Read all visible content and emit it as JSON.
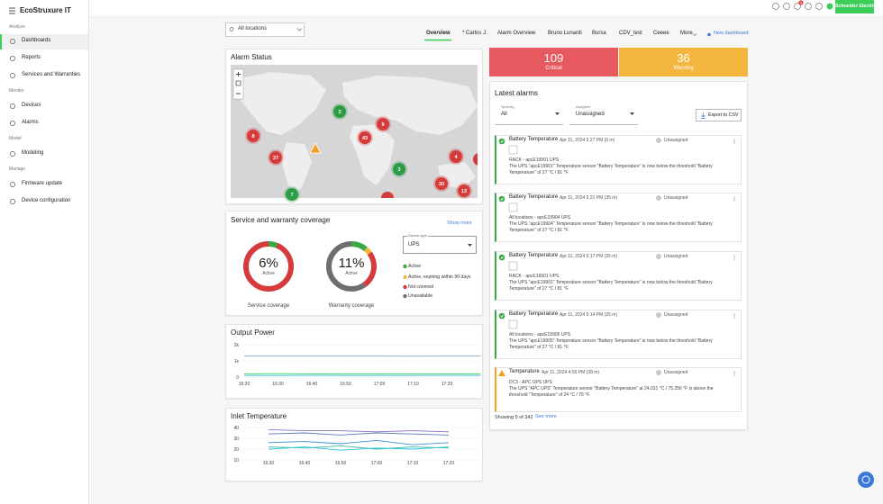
{
  "header": {
    "brand": "EcoStruxure IT",
    "notifications": 3,
    "vendor": "Schneider Electric"
  },
  "sidebar": {
    "sections": [
      {
        "title": "Analyze",
        "items": [
          "Dashboards",
          "Reports",
          "Services and Warranties"
        ]
      },
      {
        "title": "Monitor",
        "items": [
          "Devices",
          "Alarms"
        ]
      },
      {
        "title": "Model",
        "items": [
          "Modeling"
        ]
      },
      {
        "title": "Manage",
        "items": [
          "Firmware update",
          "Device configuration"
        ]
      }
    ]
  },
  "toolbar": {
    "location": "All locations",
    "tabs": [
      "Overview",
      "* Carlos J.",
      "Alarm Overview",
      "Bruno Lunardi",
      "Bursa",
      "CDV_test",
      "Ceeee",
      "More"
    ],
    "new_dashboard": "New dashboard"
  },
  "alarm_status": {
    "title": "Alarm Status",
    "clusters": [
      {
        "count": 2,
        "color": "#2e9c45"
      },
      {
        "count": 9,
        "color": "#d63b3b"
      },
      {
        "count": 8,
        "color": "#d63b3b"
      },
      {
        "count": 43,
        "color": "#d63b3b"
      },
      {
        "count": 27,
        "color": "#d63b3b"
      },
      {
        "count": 4,
        "color": "#d63b3b"
      },
      {
        "count": 3,
        "color": "#2e9c45"
      },
      {
        "count": 20,
        "color": "#d63b3b"
      },
      {
        "count": 13,
        "color": "#d63b3b"
      },
      {
        "count": 7,
        "color": "#2e9c45"
      }
    ]
  },
  "counters": [
    {
      "value": 109,
      "label": "Critical",
      "color": "#e65a5f"
    },
    {
      "value": 36,
      "label": "Warning",
      "color": "#f4b63f"
    }
  ],
  "coverage": {
    "title": "Service and warranty coverage",
    "show_more": "Show more",
    "donuts": [
      {
        "value": 6,
        "value_label": "6%",
        "status": "Active",
        "label": "Service coverage",
        "segments": [
          {
            "value": 6,
            "color": "#3aa845"
          },
          {
            "value": 94,
            "color": "#d63b3b"
          }
        ]
      },
      {
        "value": 11,
        "value_label": "11%",
        "status": "Active",
        "label": "Warranty coverage",
        "segments": [
          {
            "value": 11,
            "color": "#3aa845"
          },
          {
            "value": 4,
            "color": "#f4b63f"
          },
          {
            "value": 25,
            "color": "#d63b3b"
          },
          {
            "value": 60,
            "color": "#6e6e6e"
          }
        ]
      }
    ],
    "device_type_label": "Device type",
    "device_type": "UPS",
    "legend": [
      {
        "label": "Active",
        "color": "#3aa845"
      },
      {
        "label": "Active, expiring within 90 days",
        "color": "#f4b63f"
      },
      {
        "label": "Not covered",
        "color": "#d63b3b"
      },
      {
        "label": "Unavailable",
        "color": "#6e6e6e"
      }
    ]
  },
  "output_power": {
    "type": "line",
    "title": "Output Power",
    "categories": [
      "16:20",
      "16:30",
      "16:40",
      "16:50",
      "17:00",
      "17:10",
      "17:20",
      null
    ],
    "series": [
      {
        "color": "#8fa6bf",
        "values": [
          1300,
          1300,
          1310,
          1300,
          1300,
          1290,
          1300,
          1300
        ]
      },
      {
        "color": "#3dcd58",
        "values": [
          200,
          210,
          200,
          200,
          190,
          200,
          200,
          200
        ]
      },
      {
        "color": "#29c4e0",
        "values": [
          100,
          100,
          110,
          100,
          100,
          100,
          110,
          100
        ]
      }
    ],
    "ylim": [
      0,
      2000
    ],
    "yticks": [
      0,
      {
        "value": 1000,
        "label": "1k"
      },
      {
        "value": 2000,
        "label": "2k"
      }
    ]
  },
  "inlet_temperature": {
    "type": "line",
    "title": "Inlet Temperature",
    "categories": [
      "16:30",
      "16:40",
      "16:50",
      "17:00",
      "17:10",
      "17:20"
    ],
    "series": [
      {
        "color": "#8e6cc9",
        "values": [
          38,
          37,
          37,
          36,
          37,
          36
        ]
      },
      {
        "color": "#5b7db8",
        "values": [
          34,
          35,
          33,
          35,
          34,
          33
        ]
      },
      {
        "color": "#3a8fd9",
        "values": [
          26,
          27,
          25,
          28,
          24,
          26
        ]
      },
      {
        "color": "#3fb6a8",
        "values": [
          22,
          21,
          23,
          20,
          22,
          21
        ]
      },
      {
        "color": "#29c4e0",
        "values": [
          20,
          22,
          19,
          21,
          20,
          22
        ]
      }
    ],
    "ylim": [
      10,
      40
    ],
    "yticks": [
      10,
      20,
      30,
      40
    ]
  },
  "latest_alarms": {
    "title": "Latest alarms",
    "severity_label": "Severity",
    "severity": "All",
    "assignee_label": "Assignee",
    "assignee": "Unassigned",
    "export": "Export to CSV",
    "items": [
      {
        "name": "Battery Temperature",
        "time": "Apr 11, 2024 5:27 PM (0 m)",
        "assignee": "Unassigned",
        "location": "RACK - apcE19901 UPS",
        "color": "#3aa845",
        "description": "The UPS \"apcE19901\" Temperature sensor \"Battery Temperature\" is now below the threshold \"Battery Temperature\" of 27 °C / 81 °F."
      },
      {
        "name": "Battery Temperature",
        "time": "Apr 11, 2024 5:21 PM (35 m)",
        "assignee": "Unassigned",
        "location": "All locations - apcE19904 UPS",
        "color": "#3aa845",
        "description": "The UPS \"apcE19904\" Temperature sensor \"Battery Temperature\" is now below the threshold \"Battery Temperature\" of 27 °C / 81 °F."
      },
      {
        "name": "Battery Temperature",
        "time": "Apr 11, 2024 5:17 PM (25 m)",
        "assignee": "Unassigned",
        "location": "RACK - apcE19901 UPS",
        "color": "#3aa845",
        "description": "The UPS \"apcE19901\" Temperature sensor \"Battery Temperature\" is now below the threshold \"Battery Temperature\" of 27 °C / 81 °F."
      },
      {
        "name": "Battery Temperature",
        "time": "Apr 11, 2024 5:14 PM (25 m)",
        "assignee": "Unassigned",
        "location": "All locations - apcE19905 UPS",
        "color": "#3aa845",
        "description": "The UPS \"apcE19905\" Temperature sensor \"Battery Temperature\" is now below the threshold \"Battery Temperature\" of 27 °C / 81 °F."
      },
      {
        "name": "Temperature",
        "time": "Apr 11, 2024 4:59 PM (28 m)",
        "assignee": "Unassigned",
        "location": "DC3 - APC UPS UPS",
        "color": "#f4a020",
        "description": "The UPS \"APC UPS\" Temperature sensor \"Battery Temperature\" at 24.031 °C / 75.256 °F is above the threshold \"Temperature\" of 24 °C / 75 °F."
      }
    ],
    "showing": "Showing 5 of 342",
    "see_more": "See more"
  }
}
